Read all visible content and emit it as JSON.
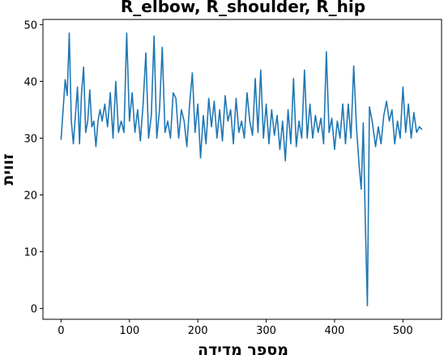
{
  "chart_data": {
    "type": "line",
    "title": "R_elbow, R_shoulder, R_hip",
    "xlabel": "מספר מדידה",
    "ylabel": "זווית",
    "x": [
      0,
      3,
      6,
      9,
      12,
      15,
      18,
      21,
      24,
      27,
      30,
      33,
      36,
      39,
      42,
      45,
      48,
      51,
      54,
      57,
      60,
      64,
      68,
      72,
      76,
      80,
      84,
      88,
      92,
      96,
      100,
      104,
      108,
      112,
      116,
      120,
      124,
      128,
      132,
      136,
      140,
      144,
      148,
      152,
      156,
      160,
      164,
      168,
      172,
      176,
      180,
      184,
      188,
      192,
      196,
      200,
      204,
      208,
      212,
      216,
      220,
      224,
      228,
      232,
      236,
      240,
      244,
      248,
      252,
      256,
      260,
      264,
      268,
      272,
      276,
      280,
      284,
      288,
      292,
      296,
      300,
      304,
      308,
      312,
      316,
      320,
      324,
      328,
      332,
      336,
      340,
      344,
      348,
      352,
      356,
      360,
      364,
      368,
      372,
      376,
      380,
      384,
      388,
      392,
      396,
      400,
      404,
      408,
      412,
      416,
      420,
      424,
      428,
      432,
      436,
      439,
      442,
      445,
      448,
      451,
      455,
      460,
      464,
      468,
      472,
      476,
      480,
      484,
      488,
      492,
      496,
      500,
      504,
      508,
      512,
      516,
      520,
      524,
      528
    ],
    "series": [
      {
        "name": "R_elbow, R_shoulder, R_hip",
        "color": "#1f77b4",
        "values": [
          29.7,
          35,
          40.3,
          37.5,
          48.5,
          33,
          29,
          34,
          39,
          29,
          38,
          42.5,
          31,
          33,
          38.5,
          32,
          33,
          28.5,
          33,
          35,
          33,
          36,
          32,
          38,
          30,
          40,
          31,
          33,
          31,
          48.5,
          33,
          38,
          31,
          35,
          29.5,
          36,
          45,
          30,
          34,
          48,
          30,
          35,
          46,
          31,
          33,
          30,
          38,
          37,
          30,
          35,
          33,
          28.5,
          36,
          41.5,
          31,
          36,
          26.5,
          34,
          29,
          37,
          32,
          36.5,
          30,
          35,
          29.5,
          37.5,
          33,
          35,
          29,
          37,
          31,
          33,
          30,
          38,
          33,
          30.5,
          40.5,
          31,
          42,
          30,
          36,
          29,
          35,
          30.5,
          34,
          28,
          33,
          26,
          35,
          29,
          40.5,
          28.5,
          33,
          30,
          42,
          30,
          36,
          30,
          34,
          31,
          33.5,
          29,
          45.2,
          31,
          33.5,
          28,
          33,
          30,
          36,
          29,
          36,
          30,
          42.7,
          32,
          25,
          21,
          32.7,
          15,
          0.5,
          35.5,
          33,
          28.5,
          32,
          29,
          34,
          36.5,
          33,
          35,
          29,
          33,
          30,
          39,
          31,
          36,
          30,
          34.5,
          31,
          32,
          31.5
        ]
      }
    ],
    "xlim": [
      -26.5,
      556.5
    ],
    "ylim": [
      -1.9,
      50.9
    ],
    "xticks": [
      0,
      100,
      200,
      300,
      400,
      500
    ],
    "yticks": [
      0,
      10,
      20,
      30,
      40,
      50
    ]
  }
}
